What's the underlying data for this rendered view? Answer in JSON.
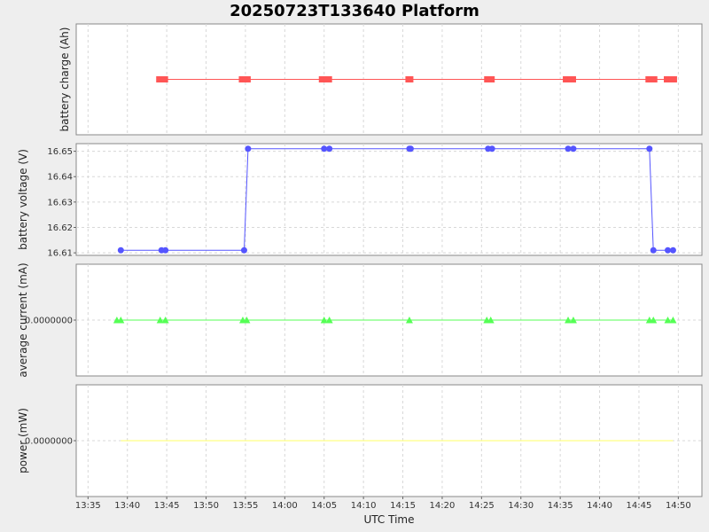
{
  "chart_data": {
    "title": "20250723T133640 Platform",
    "xlabel": "UTC Time",
    "x_ticks": [
      "13:35",
      "13:40",
      "13:45",
      "13:50",
      "13:55",
      "14:00",
      "14:05",
      "14:10",
      "14:15",
      "14:20",
      "14:25",
      "14:30",
      "14:35",
      "14:40",
      "14:45",
      "14:50"
    ],
    "x_range": [
      "13:33:30",
      "14:53:00"
    ],
    "grid": true,
    "legend": "none",
    "panels": [
      {
        "type": "line",
        "ylabel": "battery charge (Ah)",
        "y_ticks": [],
        "ylim": [
          0,
          1
        ],
        "color": "#ff5555",
        "marker": "square",
        "x": [
          "13:44:10",
          "13:44:40",
          "13:54:40",
          "13:55:10",
          "14:04:50",
          "14:05:30",
          "14:15:50",
          "14:25:50",
          "14:26:10",
          "14:35:50",
          "14:36:30",
          "14:46:20",
          "14:46:50",
          "14:48:40",
          "14:49:20"
        ],
        "values": [
          0.5,
          0.5,
          0.5,
          0.5,
          0.5,
          0.5,
          0.5,
          0.5,
          0.5,
          0.5,
          0.5,
          0.5,
          0.5,
          0.5,
          0.5
        ]
      },
      {
        "type": "line",
        "ylabel": "battery voltage (V)",
        "y_ticks": [
          "16.61",
          "16.62",
          "16.63",
          "16.64",
          "16.65"
        ],
        "ylim": [
          16.609,
          16.653
        ],
        "color": "#5555ff",
        "marker": "circle",
        "x": [
          "13:39:10",
          "13:44:20",
          "13:44:50",
          "13:54:50",
          "13:55:20",
          "14:05:00",
          "14:05:40",
          "14:15:50",
          "14:16:00",
          "14:25:50",
          "14:26:20",
          "14:36:00",
          "14:36:40",
          "14:46:20",
          "14:46:50",
          "14:48:40",
          "14:49:20"
        ],
        "values": [
          16.611,
          16.611,
          16.611,
          16.611,
          16.651,
          16.651,
          16.651,
          16.651,
          16.651,
          16.651,
          16.651,
          16.651,
          16.651,
          16.651,
          16.611,
          16.611,
          16.611
        ]
      },
      {
        "type": "line",
        "ylabel": "average current (mA)",
        "y_ticks": [
          "0.0000000"
        ],
        "ylim": [
          -1,
          1
        ],
        "color": "#55ff55",
        "marker": "triangle",
        "x": [
          "13:38:40",
          "13:39:10",
          "13:44:10",
          "13:44:50",
          "13:54:40",
          "13:55:10",
          "14:05:00",
          "14:05:40",
          "14:15:50",
          "14:25:40",
          "14:26:10",
          "14:36:00",
          "14:36:40",
          "14:46:20",
          "14:46:50",
          "14:48:40",
          "14:49:20"
        ],
        "values": [
          0,
          0,
          0,
          0,
          0,
          0,
          0,
          0,
          0,
          0,
          0,
          0,
          0,
          0,
          0,
          0,
          0
        ]
      },
      {
        "type": "line",
        "ylabel": "power (mW)",
        "y_ticks": [
          "0.0000000"
        ],
        "ylim": [
          -1,
          1
        ],
        "color": "#ffff66",
        "marker": "none",
        "x": [
          "13:39:10",
          "14:49:20"
        ],
        "values": [
          0,
          0
        ]
      }
    ]
  }
}
